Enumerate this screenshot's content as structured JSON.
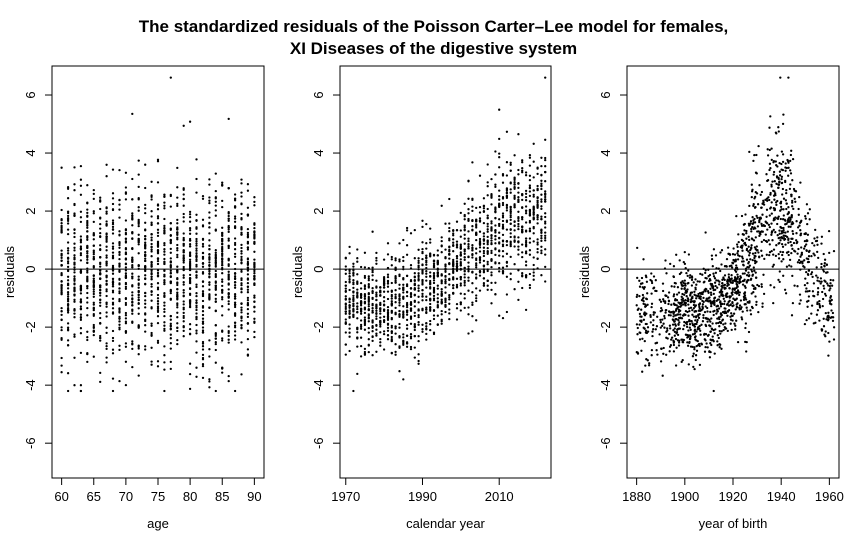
{
  "title": {
    "line1": "The standardized residuals of the Poisson Carter–Lee model for females,",
    "line2": "XI Diseases of the digestive system"
  },
  "colors": {
    "points": "#000000",
    "axes": "#000000",
    "background": "#ffffff"
  },
  "chart_data": [
    {
      "type": "scatter",
      "xlabel": "age",
      "ylabel": "residuals",
      "xlim": [
        58.5,
        91.5
      ],
      "ylim": [
        -7.2,
        7.0
      ],
      "xticks": [
        60,
        65,
        70,
        75,
        80,
        85,
        90
      ],
      "xtick_labels": [
        "60",
        "65",
        "70",
        "75",
        "80",
        "85",
        "90"
      ],
      "yticks": [
        -6,
        -4,
        -2,
        0,
        2,
        4,
        6
      ],
      "ytick_labels": [
        "-6",
        "-4",
        "-2",
        "0",
        "2",
        "4",
        "6"
      ],
      "hline": 0,
      "points_summary": {
        "x_range": [
          60,
          90
        ],
        "columns": "one column of points per integer age",
        "y_range": [
          -4.2,
          6.6
        ],
        "shape": "roughly constant spread around 0 across all ages, mostly between -3 and 3",
        "extremes": [
          [
            77,
            6.6
          ],
          [
            61,
            -4.2
          ],
          [
            63,
            -4.0
          ]
        ]
      }
    },
    {
      "type": "scatter",
      "xlabel": "calendar year",
      "ylabel": "residuals",
      "xlim": [
        1968.5,
        2023.5
      ],
      "ylim": [
        -7.2,
        7.0
      ],
      "xticks": [
        1970,
        1990,
        2010
      ],
      "xtick_labels": [
        "1970",
        "1990",
        "2010"
      ],
      "yticks": [
        -6,
        -4,
        -2,
        0,
        2,
        4,
        6
      ],
      "ytick_labels": [
        "-6",
        "-4",
        "-2",
        "0",
        "2",
        "4",
        "6"
      ],
      "hline": 0,
      "points_summary": {
        "x_range": [
          1970,
          2022
        ],
        "columns": "one column of points per calendar year",
        "y_range": [
          -4.2,
          6.6
        ],
        "shape": "increasing trend: centered near -1.3 around 1970-1985, near 0 around 1995-2000, near 2 around 2015-2022",
        "extremes": [
          [
            2022,
            6.6
          ],
          [
            1972,
            -4.2
          ],
          [
            1985,
            -3.8
          ]
        ]
      }
    },
    {
      "type": "scatter",
      "xlabel": "year of birth",
      "ylabel": "residuals",
      "xlim": [
        1876,
        1964
      ],
      "ylim": [
        -7.2,
        7.0
      ],
      "xticks": [
        1880,
        1900,
        1920,
        1940,
        1960
      ],
      "xtick_labels": [
        "1880",
        "1900",
        "1920",
        "1940",
        "1960"
      ],
      "yticks": [
        -6,
        -4,
        -2,
        0,
        2,
        4,
        6
      ],
      "ytick_labels": [
        "-6",
        "-4",
        "-2",
        "0",
        "2",
        "4",
        "6"
      ],
      "hline": 0,
      "points_summary": {
        "x_range": [
          1880,
          1962
        ],
        "columns": "dense continuous band of points",
        "y_range": [
          -4.2,
          6.6
        ],
        "shape": "near -1.5 for births 1880-1915, rising steeply to about 2 around 1935-1945, then falling to about -1 by 1955-1962",
        "extremes": [
          [
            1943,
            6.6
          ],
          [
            1912,
            -4.2
          ],
          [
            1960,
            -2.5
          ]
        ]
      }
    }
  ]
}
